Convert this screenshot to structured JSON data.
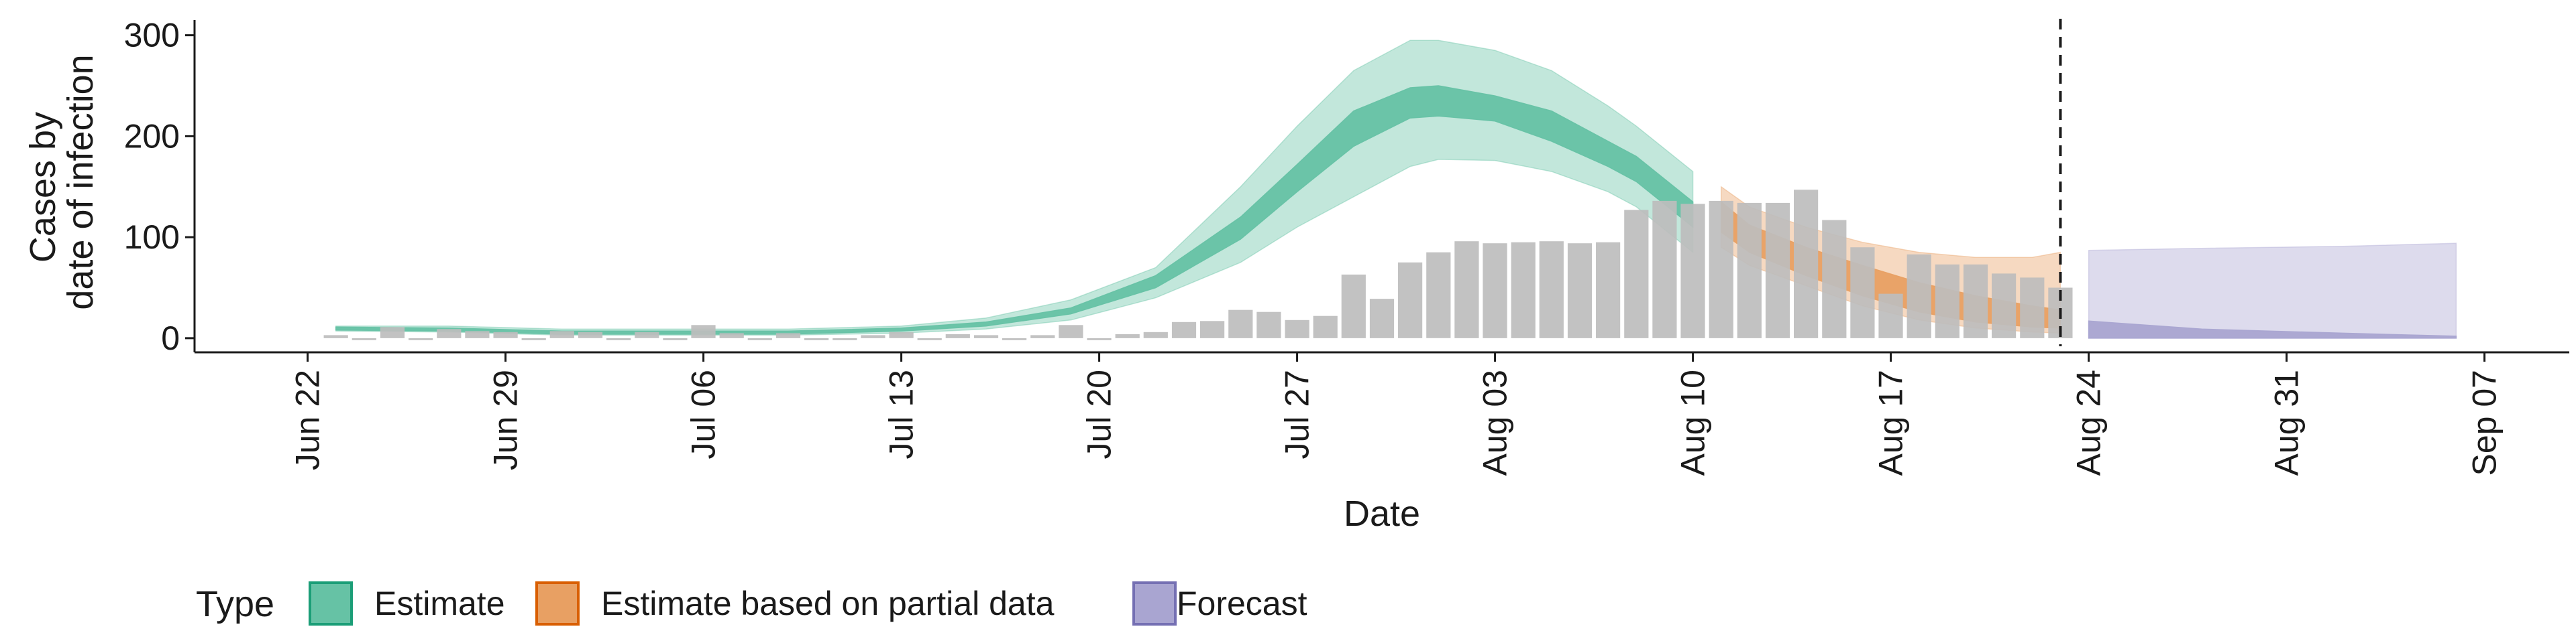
{
  "chart_data": {
    "type": "area",
    "xlabel": "Date",
    "ylabel_lines": [
      "Cases by",
      "date of infection"
    ],
    "x_range": [
      "2020-06-18",
      "2020-09-10"
    ],
    "ylim": [
      -14,
      315
    ],
    "y_ticks": [
      0,
      100,
      200,
      300
    ],
    "x_ticks": [
      {
        "date": "2020-06-22",
        "label": "Jun 22"
      },
      {
        "date": "2020-06-29",
        "label": "Jun 29"
      },
      {
        "date": "2020-07-06",
        "label": "Jul 06"
      },
      {
        "date": "2020-07-13",
        "label": "Jul 13"
      },
      {
        "date": "2020-07-20",
        "label": "Jul 20"
      },
      {
        "date": "2020-07-27",
        "label": "Jul 27"
      },
      {
        "date": "2020-08-03",
        "label": "Aug 03"
      },
      {
        "date": "2020-08-10",
        "label": "Aug 10"
      },
      {
        "date": "2020-08-17",
        "label": "Aug 17"
      },
      {
        "date": "2020-08-24",
        "label": "Aug 24"
      },
      {
        "date": "2020-08-31",
        "label": "Aug 31"
      },
      {
        "date": "2020-09-07",
        "label": "Sep 07"
      }
    ],
    "grid": false,
    "legend_position": "bottom-left",
    "legend": {
      "title": "Type",
      "items": [
        {
          "label": "Estimate",
          "fill": "#66c2a5",
          "stroke": "#1b9e77"
        },
        {
          "label": "Estimate based on partial data",
          "fill": "#e8a063",
          "stroke": "#d95f02"
        },
        {
          "label": "Forecast",
          "fill": "#a9a5d1",
          "stroke": "#7570b3"
        }
      ]
    },
    "vline_date": "2020-08-23",
    "bars": {
      "color": "#bdbdbd",
      "dates": [
        "2020-06-23",
        "2020-06-24",
        "2020-06-25",
        "2020-06-26",
        "2020-06-27",
        "2020-06-28",
        "2020-06-29",
        "2020-06-30",
        "2020-07-01",
        "2020-07-02",
        "2020-07-03",
        "2020-07-04",
        "2020-07-05",
        "2020-07-06",
        "2020-07-07",
        "2020-07-08",
        "2020-07-09",
        "2020-07-10",
        "2020-07-11",
        "2020-07-12",
        "2020-07-13",
        "2020-07-14",
        "2020-07-15",
        "2020-07-16",
        "2020-07-17",
        "2020-07-18",
        "2020-07-19",
        "2020-07-20",
        "2020-07-21",
        "2020-07-22",
        "2020-07-23",
        "2020-07-24",
        "2020-07-25",
        "2020-07-26",
        "2020-07-27",
        "2020-07-28",
        "2020-07-29",
        "2020-07-30",
        "2020-07-31",
        "2020-08-01",
        "2020-08-02",
        "2020-08-03",
        "2020-08-04",
        "2020-08-05",
        "2020-08-06",
        "2020-08-07",
        "2020-08-08",
        "2020-08-09",
        "2020-08-10",
        "2020-08-11",
        "2020-08-12",
        "2020-08-13",
        "2020-08-14",
        "2020-08-15",
        "2020-08-16",
        "2020-08-17",
        "2020-08-18",
        "2020-08-19",
        "2020-08-20",
        "2020-08-21",
        "2020-08-22",
        "2020-08-23"
      ],
      "values": [
        3,
        0,
        11,
        0,
        9,
        7,
        6,
        0,
        7,
        6,
        0,
        6,
        0,
        13,
        5,
        0,
        5,
        0,
        0,
        3,
        6,
        0,
        4,
        3,
        0,
        3,
        13,
        0,
        4,
        6,
        16,
        17,
        28,
        26,
        18,
        22,
        63,
        39,
        75,
        85,
        96,
        94,
        95,
        96,
        94,
        95,
        127,
        136,
        133,
        136,
        134,
        134,
        147,
        117,
        90,
        44,
        83,
        73,
        73,
        64,
        60,
        50
      ]
    },
    "series": [
      {
        "name": "Estimate",
        "dates": [
          "2020-06-23",
          "2020-06-27",
          "2020-07-01",
          "2020-07-05",
          "2020-07-09",
          "2020-07-13",
          "2020-07-16",
          "2020-07-19",
          "2020-07-22",
          "2020-07-25",
          "2020-07-27",
          "2020-07-29",
          "2020-07-31",
          "2020-08-01",
          "2020-08-03",
          "2020-08-05",
          "2020-08-07",
          "2020-08-08",
          "2020-08-10"
        ],
        "lower_90": [
          7,
          6,
          3,
          3,
          3,
          5,
          9,
          18,
          40,
          75,
          110,
          140,
          170,
          177,
          176,
          165,
          145,
          130,
          85
        ],
        "upper_90": [
          12,
          12,
          9,
          9,
          9,
          12,
          20,
          38,
          70,
          150,
          210,
          265,
          295,
          295,
          285,
          265,
          230,
          210,
          165
        ],
        "lower_50": [
          8,
          7,
          4,
          4,
          4,
          7,
          12,
          24,
          50,
          98,
          145,
          190,
          218,
          220,
          215,
          195,
          170,
          155,
          110
        ],
        "upper_50": [
          11,
          10,
          7,
          7,
          7,
          10,
          16,
          30,
          62,
          120,
          172,
          225,
          248,
          250,
          240,
          225,
          195,
          180,
          135
        ]
      },
      {
        "name": "Estimate based on partial data",
        "dates": [
          "2020-08-11",
          "2020-08-12",
          "2020-08-14",
          "2020-08-16",
          "2020-08-18",
          "2020-08-20",
          "2020-08-22",
          "2020-08-23"
        ],
        "lower_90": [
          90,
          72,
          52,
          32,
          18,
          10,
          6,
          5
        ],
        "upper_90": [
          150,
          130,
          110,
          95,
          85,
          80,
          80,
          85
        ],
        "lower_50": [
          105,
          85,
          62,
          42,
          26,
          16,
          11,
          10
        ],
        "upper_50": [
          135,
          112,
          90,
          72,
          55,
          42,
          32,
          28
        ]
      },
      {
        "name": "Forecast",
        "dates": [
          "2020-08-24",
          "2020-08-28",
          "2020-09-02",
          "2020-09-06"
        ],
        "lower_90": [
          0,
          0,
          0,
          0
        ],
        "upper_90": [
          87,
          89,
          91,
          94
        ],
        "lower_50": [
          0,
          0,
          0,
          0
        ],
        "upper_50": [
          17,
          9,
          5,
          2
        ]
      }
    ]
  }
}
